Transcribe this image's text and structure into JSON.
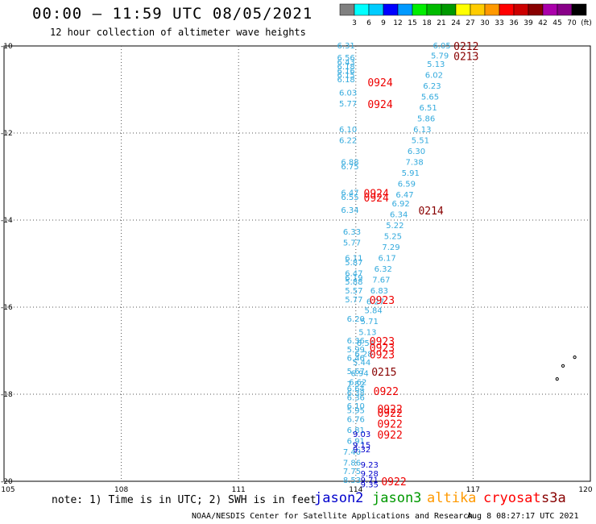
{
  "header": {
    "title": "00:00 – 11:59 UTC 08/05/2021",
    "subtitle": "12 hour collection of altimeter wave heights"
  },
  "footer": {
    "note": "note: 1) Time is in UTC; 2) SWH is in feet",
    "credit_left": "NOAA/NESDIS Center for Satellite Applications and Research",
    "credit_right": "Aug  8 08:27:17 UTC 2021"
  },
  "satellites": [
    {
      "name": "jason2",
      "color": "#0000cc"
    },
    {
      "name": "jason3",
      "color": "#009900"
    },
    {
      "name": "altika",
      "color": "#ff9900"
    },
    {
      "name": "cryosat",
      "color": "#ff0000"
    },
    {
      "name": "s3a",
      "color": "#880000"
    }
  ],
  "colorbar": {
    "colors": [
      "#808080",
      "#00ffff",
      "#00ccff",
      "#0000ff",
      "#0099ff",
      "#00ee00",
      "#00bb00",
      "#009900",
      "#ffff00",
      "#ffcc00",
      "#ff9900",
      "#ff0000",
      "#cc0000",
      "#880000",
      "#aa00aa",
      "#880088",
      "#000000"
    ],
    "tick_labels": [
      "3",
      "6",
      "9",
      "12",
      "15",
      "18",
      "21",
      "24",
      "27",
      "30",
      "33",
      "36",
      "39",
      "42",
      "45",
      "70",
      "(ft)"
    ]
  },
  "chart_data": {
    "type": "scatter",
    "title": "00:00 – 11:59 UTC 08/05/2021",
    "subtitle": "12 hour collection of altimeter wave heights",
    "x_axis": {
      "range": [
        105,
        120
      ],
      "ticks": [
        105,
        108,
        111,
        114,
        117,
        120
      ],
      "tick_labels": [
        "105",
        "108",
        "111",
        "114",
        "117",
        "120"
      ]
    },
    "y_axis": {
      "range": [
        -20,
        -10
      ],
      "ticks": [
        -20,
        -18,
        -16,
        -14,
        -12,
        -10
      ],
      "tick_labels": [
        "-20",
        "-18",
        "-16",
        "-14",
        "-12",
        "-10"
      ]
    },
    "grid": true,
    "units": "ft",
    "wave_heights": [
      {
        "lon": 113.75,
        "lat": -10.0,
        "swh": "6.31",
        "color": "#33aadd"
      },
      {
        "lon": 113.75,
        "lat": -10.28,
        "swh": "6.56",
        "color": "#33aadd"
      },
      {
        "lon": 113.75,
        "lat": -10.38,
        "swh": "6.43",
        "color": "#33aadd"
      },
      {
        "lon": 113.75,
        "lat": -10.48,
        "swh": "6.18",
        "color": "#33aadd"
      },
      {
        "lon": 113.75,
        "lat": -10.58,
        "swh": "6.16",
        "color": "#33aadd"
      },
      {
        "lon": 113.75,
        "lat": -10.68,
        "swh": "6.15",
        "color": "#33aadd"
      },
      {
        "lon": 113.75,
        "lat": -10.78,
        "swh": "6.18",
        "color": "#33aadd"
      },
      {
        "lon": 113.8,
        "lat": -11.08,
        "swh": "6.03",
        "color": "#33aadd"
      },
      {
        "lon": 113.8,
        "lat": -11.33,
        "swh": "5.77",
        "color": "#33aadd"
      },
      {
        "lon": 113.8,
        "lat": -11.93,
        "swh": "6.10",
        "color": "#33aadd"
      },
      {
        "lon": 113.8,
        "lat": -12.18,
        "swh": "6.22",
        "color": "#33aadd"
      },
      {
        "lon": 113.85,
        "lat": -12.68,
        "swh": "6.88",
        "color": "#33aadd"
      },
      {
        "lon": 113.85,
        "lat": -12.78,
        "swh": "6.75",
        "color": "#33aadd"
      },
      {
        "lon": 113.85,
        "lat": -13.38,
        "swh": "6.47",
        "color": "#33aadd"
      },
      {
        "lon": 113.85,
        "lat": -13.48,
        "swh": "6.55",
        "color": "#33aadd"
      },
      {
        "lon": 113.85,
        "lat": -13.78,
        "swh": "6.34",
        "color": "#33aadd"
      },
      {
        "lon": 113.9,
        "lat": -14.28,
        "swh": "6.33",
        "color": "#33aadd"
      },
      {
        "lon": 113.9,
        "lat": -14.53,
        "swh": "5.77",
        "color": "#33aadd"
      },
      {
        "lon": 113.95,
        "lat": -14.88,
        "swh": "6.11",
        "color": "#33aadd"
      },
      {
        "lon": 113.95,
        "lat": -14.98,
        "swh": "5.87",
        "color": "#33aadd"
      },
      {
        "lon": 113.95,
        "lat": -15.23,
        "swh": "6.47",
        "color": "#33aadd"
      },
      {
        "lon": 113.95,
        "lat": -15.33,
        "swh": "6.19",
        "color": "#33aadd"
      },
      {
        "lon": 113.95,
        "lat": -15.43,
        "swh": "5.88",
        "color": "#33aadd"
      },
      {
        "lon": 113.95,
        "lat": -15.63,
        "swh": "5.57",
        "color": "#33aadd"
      },
      {
        "lon": 113.95,
        "lat": -15.83,
        "swh": "5.77",
        "color": "#33aadd"
      },
      {
        "lon": 114.0,
        "lat": -16.28,
        "swh": "6.20",
        "color": "#33aadd"
      },
      {
        "lon": 114.0,
        "lat": -16.78,
        "swh": "6.36",
        "color": "#33aadd"
      },
      {
        "lon": 114.0,
        "lat": -16.98,
        "swh": "5.99",
        "color": "#33aadd"
      },
      {
        "lon": 114.0,
        "lat": -17.18,
        "swh": "6.46",
        "color": "#33aadd"
      },
      {
        "lon": 114.0,
        "lat": -17.48,
        "swh": "5.67",
        "color": "#33aadd"
      },
      {
        "lon": 114.0,
        "lat": -17.78,
        "swh": "7.52",
        "color": "#33aadd"
      },
      {
        "lon": 114.0,
        "lat": -17.88,
        "swh": "6.64",
        "color": "#33aadd"
      },
      {
        "lon": 114.0,
        "lat": -17.98,
        "swh": "6.38",
        "color": "#33aadd"
      },
      {
        "lon": 114.0,
        "lat": -18.08,
        "swh": "6.36",
        "color": "#33aadd"
      },
      {
        "lon": 114.0,
        "lat": -18.28,
        "swh": "6.10",
        "color": "#33aadd"
      },
      {
        "lon": 114.0,
        "lat": -18.38,
        "swh": "5.95",
        "color": "#33aadd"
      },
      {
        "lon": 114.0,
        "lat": -18.58,
        "swh": "6.76",
        "color": "#33aadd"
      },
      {
        "lon": 114.0,
        "lat": -18.83,
        "swh": "6.81",
        "color": "#33aadd"
      },
      {
        "lon": 114.0,
        "lat": -19.08,
        "swh": "6.91",
        "color": "#33aadd"
      },
      {
        "lon": 113.9,
        "lat": -19.33,
        "swh": "7.40",
        "color": "#33aadd"
      },
      {
        "lon": 113.9,
        "lat": -19.58,
        "swh": "7.86",
        "color": "#33aadd"
      },
      {
        "lon": 113.9,
        "lat": -19.78,
        "swh": "7.75",
        "color": "#33aadd"
      },
      {
        "lon": 113.9,
        "lat": -19.98,
        "swh": "8.53",
        "color": "#33aadd"
      },
      {
        "lon": 114.35,
        "lat": -19.63,
        "swh": "9.23",
        "color": "#0000cc"
      },
      {
        "lon": 114.35,
        "lat": -19.83,
        "swh": "9.28",
        "color": "#0000cc"
      },
      {
        "lon": 114.35,
        "lat": -19.98,
        "swh": "9.71",
        "color": "#0000cc"
      },
      {
        "lon": 114.35,
        "lat": -20.08,
        "swh": "9.35",
        "color": "#0000cc"
      },
      {
        "lon": 114.15,
        "lat": -18.93,
        "swh": "9.03",
        "color": "#0000cc"
      },
      {
        "lon": 114.15,
        "lat": -19.18,
        "swh": "9.15",
        "color": "#0000cc"
      },
      {
        "lon": 114.15,
        "lat": -19.28,
        "swh": "9.32",
        "color": "#0000cc"
      },
      {
        "lon": 116.2,
        "lat": -10.0,
        "swh": "6.05",
        "color": "#33aadd"
      },
      {
        "lon": 116.15,
        "lat": -10.23,
        "swh": "5.79",
        "color": "#33aadd"
      },
      {
        "lon": 116.05,
        "lat": -10.43,
        "swh": "5.13",
        "color": "#33aadd"
      },
      {
        "lon": 116.0,
        "lat": -10.68,
        "swh": "6.02",
        "color": "#33aadd"
      },
      {
        "lon": 115.95,
        "lat": -10.93,
        "swh": "6.23",
        "color": "#33aadd"
      },
      {
        "lon": 115.9,
        "lat": -11.18,
        "swh": "5.65",
        "color": "#33aadd"
      },
      {
        "lon": 115.85,
        "lat": -11.43,
        "swh": "6.51",
        "color": "#33aadd"
      },
      {
        "lon": 115.8,
        "lat": -11.68,
        "swh": "5.86",
        "color": "#33aadd"
      },
      {
        "lon": 115.7,
        "lat": -11.93,
        "swh": "6.13",
        "color": "#33aadd"
      },
      {
        "lon": 115.65,
        "lat": -12.18,
        "swh": "5.51",
        "color": "#33aadd"
      },
      {
        "lon": 115.55,
        "lat": -12.43,
        "swh": "6.30",
        "color": "#33aadd"
      },
      {
        "lon": 115.5,
        "lat": -12.68,
        "swh": "7.38",
        "color": "#33aadd"
      },
      {
        "lon": 115.4,
        "lat": -12.93,
        "swh": "5.91",
        "color": "#33aadd"
      },
      {
        "lon": 115.3,
        "lat": -13.18,
        "swh": "6.59",
        "color": "#33aadd"
      },
      {
        "lon": 115.25,
        "lat": -13.43,
        "swh": "6.47",
        "color": "#33aadd"
      },
      {
        "lon": 115.15,
        "lat": -13.63,
        "swh": "6.92",
        "color": "#33aadd"
      },
      {
        "lon": 115.1,
        "lat": -13.88,
        "swh": "6.34",
        "color": "#33aadd"
      },
      {
        "lon": 115.0,
        "lat": -14.13,
        "swh": "5.22",
        "color": "#33aadd"
      },
      {
        "lon": 114.95,
        "lat": -14.38,
        "swh": "5.25",
        "color": "#33aadd"
      },
      {
        "lon": 114.9,
        "lat": -14.63,
        "swh": "7.29",
        "color": "#33aadd"
      },
      {
        "lon": 114.8,
        "lat": -14.88,
        "swh": "6.17",
        "color": "#33aadd"
      },
      {
        "lon": 114.7,
        "lat": -15.13,
        "swh": "6.32",
        "color": "#33aadd"
      },
      {
        "lon": 114.65,
        "lat": -15.38,
        "swh": "7.67",
        "color": "#33aadd"
      },
      {
        "lon": 114.6,
        "lat": -15.63,
        "swh": "6.83",
        "color": "#33aadd"
      },
      {
        "lon": 114.5,
        "lat": -15.88,
        "swh": "6.27",
        "color": "#33aadd"
      },
      {
        "lon": 114.45,
        "lat": -16.08,
        "swh": "5.84",
        "color": "#33aadd"
      },
      {
        "lon": 114.35,
        "lat": -16.33,
        "swh": "5.71",
        "color": "#33aadd"
      },
      {
        "lon": 114.3,
        "lat": -16.58,
        "swh": "5.13",
        "color": "#33aadd"
      },
      {
        "lon": 114.25,
        "lat": -16.83,
        "swh": "6.54",
        "color": "#33aadd"
      },
      {
        "lon": 114.2,
        "lat": -17.08,
        "swh": "6.28",
        "color": "#33aadd"
      },
      {
        "lon": 114.15,
        "lat": -17.28,
        "swh": "5.44",
        "color": "#33aadd"
      },
      {
        "lon": 114.1,
        "lat": -17.53,
        "swh": "6.94",
        "color": "#33aadd"
      },
      {
        "lon": 114.05,
        "lat": -17.73,
        "swh": "6.62",
        "color": "#33aadd"
      }
    ],
    "pass_labels": [
      {
        "lon": 116.5,
        "lat": -10.0,
        "label": "0212",
        "color": "#880000"
      },
      {
        "lon": 116.5,
        "lat": -10.23,
        "label": "0213",
        "color": "#880000"
      },
      {
        "lon": 114.3,
        "lat": -10.83,
        "label": "0924",
        "color": "#ee0000"
      },
      {
        "lon": 114.3,
        "lat": -11.33,
        "label": "0924",
        "color": "#ee0000"
      },
      {
        "lon": 114.2,
        "lat": -13.38,
        "label": "0924",
        "color": "#ee0000"
      },
      {
        "lon": 114.2,
        "lat": -13.48,
        "label": "0924",
        "color": "#ee0000"
      },
      {
        "lon": 115.6,
        "lat": -13.78,
        "label": "0214",
        "color": "#880000"
      },
      {
        "lon": 114.35,
        "lat": -15.83,
        "label": "0923",
        "color": "#ee0000"
      },
      {
        "lon": 114.35,
        "lat": -16.78,
        "label": "0923",
        "color": "#ee0000"
      },
      {
        "lon": 114.35,
        "lat": -16.93,
        "label": "0923",
        "color": "#ee0000"
      },
      {
        "lon": 114.35,
        "lat": -17.08,
        "label": "0923",
        "color": "#ee0000"
      },
      {
        "lon": 114.4,
        "lat": -17.48,
        "label": "0215",
        "color": "#880000"
      },
      {
        "lon": 114.45,
        "lat": -17.93,
        "label": "0922",
        "color": "#ee0000"
      },
      {
        "lon": 114.55,
        "lat": -18.33,
        "label": "0922",
        "color": "#ee0000"
      },
      {
        "lon": 114.55,
        "lat": -18.43,
        "label": "0922",
        "color": "#ee0000"
      },
      {
        "lon": 114.55,
        "lat": -18.68,
        "label": "0922",
        "color": "#ee0000"
      },
      {
        "lon": 114.55,
        "lat": -18.93,
        "label": "0922",
        "color": "#ee0000"
      },
      {
        "lon": 114.65,
        "lat": -20.0,
        "label": "0922",
        "color": "#ee0000"
      }
    ],
    "islands": [
      {
        "lon": 119.6,
        "lat": -17.15
      },
      {
        "lon": 119.3,
        "lat": -17.35
      },
      {
        "lon": 119.15,
        "lat": -17.65
      }
    ]
  }
}
